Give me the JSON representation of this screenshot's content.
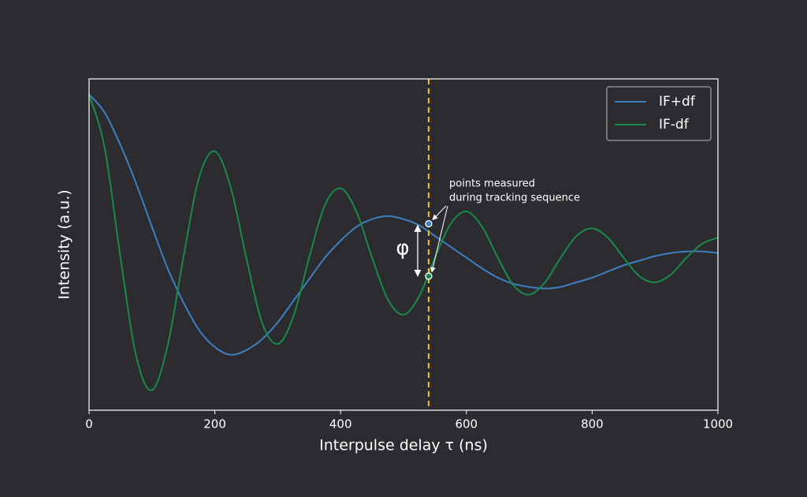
{
  "chart_data": {
    "type": "line",
    "xlabel": "Interpulse delay τ (ns)",
    "ylabel": "Intensity (a.u.)",
    "x": [
      0,
      25,
      50,
      75,
      100,
      125,
      150,
      175,
      200,
      225,
      250,
      275,
      300,
      325,
      350,
      375,
      400,
      425,
      450,
      475,
      500,
      525,
      550,
      575,
      600,
      625,
      650,
      675,
      700,
      725,
      750,
      775,
      800,
      825,
      850,
      875,
      900,
      925,
      950,
      975,
      1000
    ],
    "series": [
      {
        "name": "IF+df",
        "color": "#3f7fc0",
        "values": [
          1.0,
          0.88,
          0.67,
          0.42,
          0.14,
          -0.13,
          -0.35,
          -0.53,
          -0.64,
          -0.69,
          -0.66,
          -0.59,
          -0.48,
          -0.34,
          -0.2,
          -0.06,
          0.05,
          0.14,
          0.19,
          0.21,
          0.19,
          0.15,
          0.08,
          0.01,
          -0.06,
          -0.13,
          -0.19,
          -0.23,
          -0.25,
          -0.26,
          -0.25,
          -0.22,
          -0.19,
          -0.15,
          -0.11,
          -0.08,
          -0.05,
          -0.03,
          -0.02,
          -0.02,
          -0.03
        ]
      },
      {
        "name": "IF-df",
        "color": "#1a8a4a",
        "values": [
          1.0,
          0.65,
          -0.06,
          -0.7,
          -0.92,
          -0.63,
          -0.06,
          0.46,
          0.63,
          0.4,
          -0.06,
          -0.48,
          -0.62,
          -0.44,
          -0.06,
          0.28,
          0.39,
          0.24,
          -0.06,
          -0.33,
          -0.43,
          -0.31,
          -0.06,
          0.16,
          0.24,
          0.14,
          -0.06,
          -0.24,
          -0.3,
          -0.22,
          -0.06,
          0.08,
          0.13,
          0.07,
          -0.06,
          -0.18,
          -0.22,
          -0.17,
          -0.06,
          0.03,
          0.07
        ]
      }
    ],
    "markers": {
      "x": 540,
      "values": [
        0.16,
        -0.18
      ],
      "colors": [
        "#3f7fc0",
        "#1a8a4a"
      ]
    },
    "vline_x": 540,
    "vline_color": "#f2c418",
    "annotation": [
      "points measured",
      "during tracking sequence"
    ],
    "phase_label": "φ",
    "xlim": [
      0,
      1000
    ],
    "ylim": [
      -1.05,
      1.1
    ],
    "xticks": [
      0,
      200,
      400,
      600,
      800,
      1000
    ],
    "legend": "upper right"
  }
}
